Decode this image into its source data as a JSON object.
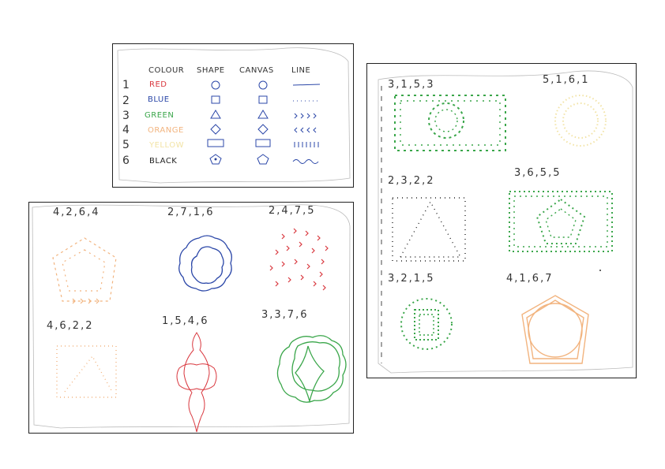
{
  "legend": {
    "headers": [
      "COLOUR",
      "SHAPE",
      "CANVAS",
      "LINE"
    ],
    "rows": [
      {
        "num": "1",
        "colour": "RED",
        "color": "#d9383f",
        "shape": "circle",
        "line": "solid"
      },
      {
        "num": "2",
        "colour": "BLUE",
        "color": "#2b47a8",
        "shape": "square",
        "line": "dotted"
      },
      {
        "num": "3",
        "colour": "GREEN",
        "color": "#3aa64a",
        "shape": "triangle",
        "line": "chevron-right"
      },
      {
        "num": "4",
        "colour": "ORANGE",
        "color": "#f2b47f",
        "shape": "diamond",
        "line": "chevron-left"
      },
      {
        "num": "5",
        "colour": "YELLOW",
        "color": "#f2e3a5",
        "shape": "rectangle",
        "line": "ticks"
      },
      {
        "num": "6",
        "colour": "BLACK",
        "color": "#222222",
        "shape": "pentagon",
        "line": "wavy"
      }
    ]
  },
  "left_panel": {
    "codes": [
      "4,2,6,4",
      "2,7,1,6",
      "2,4,7,5",
      "4,6,2,2",
      "1,5,4,6",
      "3,3,7,6"
    ]
  },
  "right_panel": {
    "codes": [
      "3,1,5,3",
      "5,1,6,1",
      "2,3,2,2",
      "3,6,5,5",
      "3,2,1,5",
      "4,1,6,7"
    ]
  }
}
